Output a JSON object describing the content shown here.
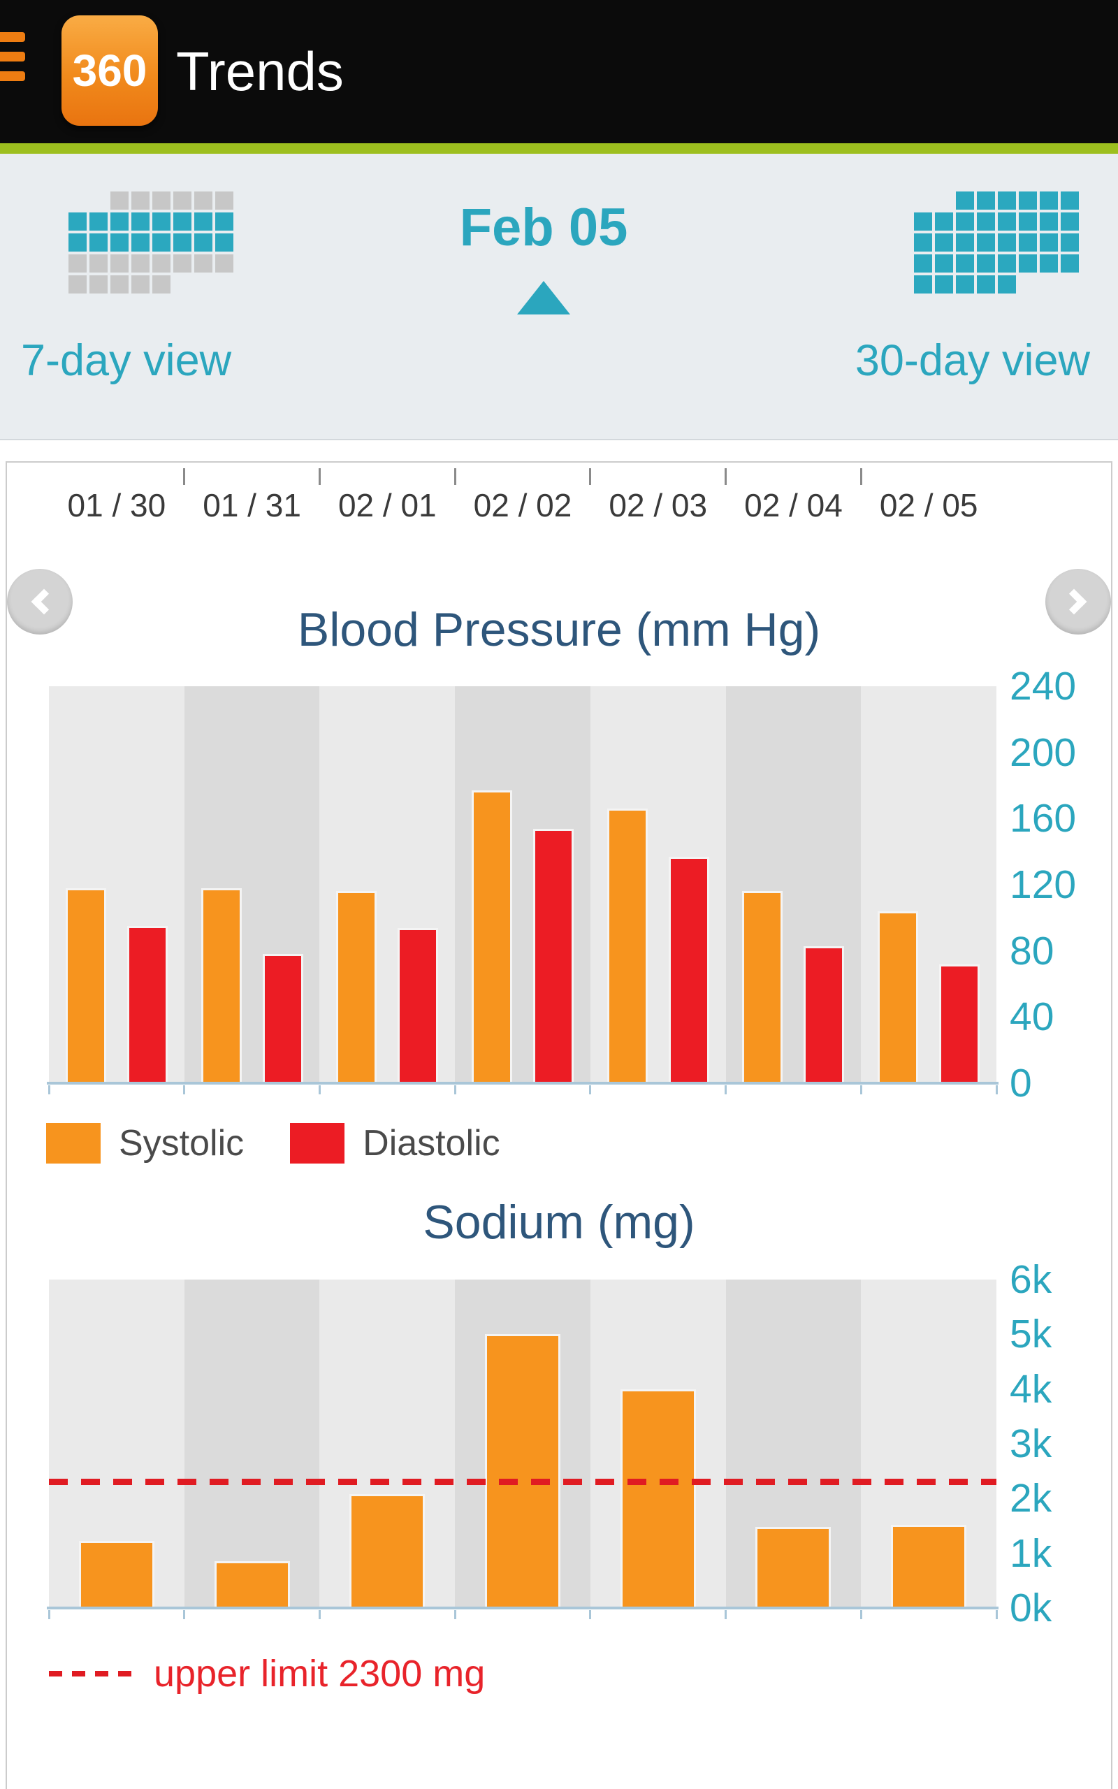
{
  "header": {
    "app_icon_label": "360",
    "title": "Trends"
  },
  "date_nav": {
    "current_date": "Feb 05",
    "left_view_label": "7-day view",
    "right_view_label": "30-day view"
  },
  "dates": [
    "01 / 30",
    "01 / 31",
    "02 / 01",
    "02 / 02",
    "02 / 03",
    "02 / 04",
    "02 / 05"
  ],
  "chart_data": [
    {
      "type": "bar",
      "title": "Blood Pressure (mm Hg)",
      "categories": [
        "01 / 30",
        "01 / 31",
        "02 / 01",
        "02 / 02",
        "02 / 03",
        "02 / 04",
        "02 / 05"
      ],
      "series": [
        {
          "name": "Systolic",
          "color": "#F7941E",
          "values": [
            118,
            118,
            116,
            177,
            166,
            116,
            104
          ]
        },
        {
          "name": "Diastolic",
          "color": "#EC1C24",
          "values": [
            95,
            78,
            94,
            154,
            137,
            83,
            72
          ]
        }
      ],
      "ylim": [
        0,
        240
      ],
      "yticks": [
        "240",
        "200",
        "160",
        "120",
        "80",
        "40",
        "0"
      ],
      "legend_position": "bottom-left",
      "grid": false
    },
    {
      "type": "bar",
      "title": "Sodium (mg)",
      "categories": [
        "01 / 30",
        "01 / 31",
        "02 / 01",
        "02 / 02",
        "02 / 03",
        "02 / 04",
        "02 / 05"
      ],
      "series": [
        {
          "name": "Sodium",
          "color": "#F7941E",
          "values": [
            1230,
            850,
            2080,
            5000,
            4000,
            1480,
            1520
          ]
        }
      ],
      "ylim": [
        0,
        6000
      ],
      "yticks": [
        "6k",
        "5k",
        "4k",
        "3k",
        "2k",
        "1k",
        "0k"
      ],
      "reference_line": {
        "value": 2300,
        "label": "upper limit 2300 mg",
        "color": "#E01B22"
      },
      "legend_position": "bottom-left",
      "grid": false
    }
  ],
  "colors": {
    "teal": "#2BA6BE",
    "title_blue": "#2E567B",
    "orange": "#F7941E",
    "red": "#EC1C24",
    "header_green": "#9DBF1F"
  }
}
